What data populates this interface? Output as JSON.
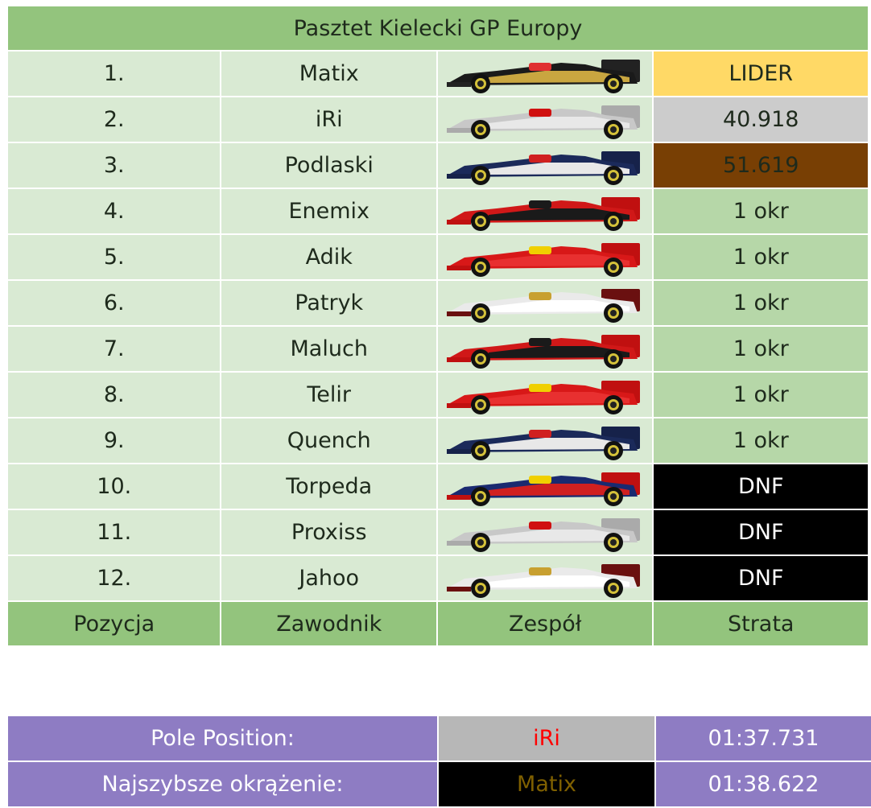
{
  "title": "Pasztet Kielecki GP Europy",
  "rows": [
    {
      "pos": "1.",
      "driver": "Matix",
      "car": "car-black-gold-icon",
      "gap": "LIDER",
      "gap_color": "#ffd966"
    },
    {
      "pos": "2.",
      "driver": "iRi",
      "car": "car-silver-red-icon",
      "gap": "40.918",
      "gap_color": "#cccccc"
    },
    {
      "pos": "3.",
      "driver": "Podlaski",
      "car": "car-navy-white-icon",
      "gap": "51.619",
      "gap_color": "#783f04"
    },
    {
      "pos": "4.",
      "driver": "Enemix",
      "car": "car-red-black-icon",
      "gap": "1 okr",
      "gap_color": "#b6d7a8"
    },
    {
      "pos": "5.",
      "driver": "Adik",
      "car": "car-red-icon",
      "gap": "1 okr",
      "gap_color": "#b6d7a8"
    },
    {
      "pos": "6.",
      "driver": "Patryk",
      "car": "car-white-maroon-icon",
      "gap": "1 okr",
      "gap_color": "#b6d7a8"
    },
    {
      "pos": "7.",
      "driver": "Maluch",
      "car": "car-red-black-icon",
      "gap": "1 okr",
      "gap_color": "#b6d7a8"
    },
    {
      "pos": "8.",
      "driver": "Telir",
      "car": "car-red-icon",
      "gap": "1 okr",
      "gap_color": "#b6d7a8"
    },
    {
      "pos": "9.",
      "driver": "Quench",
      "car": "car-navy-white-icon",
      "gap": "1 okr",
      "gap_color": "#b6d7a8"
    },
    {
      "pos": "10.",
      "driver": "Torpeda",
      "car": "car-navy-red-yellow-icon",
      "gap": "DNF",
      "gap_color": "#000000"
    },
    {
      "pos": "11.",
      "driver": "Proxiss",
      "car": "car-silver-red-icon",
      "gap": "DNF",
      "gap_color": "#000000"
    },
    {
      "pos": "12.",
      "driver": "Jahoo",
      "car": "car-white-maroon-icon",
      "gap": "DNF",
      "gap_color": "#000000"
    }
  ],
  "headers": {
    "position": "Pozycja",
    "driver": "Zawodnik",
    "team": "Zespół",
    "gap": "Strata"
  },
  "awards": {
    "pole": {
      "label": "Pole Position:",
      "driver": "iRi",
      "time": "01:37.731"
    },
    "fastest_lap": {
      "label": "Najszybsze okrążenie:",
      "driver": "Matix",
      "time": "01:38.622"
    }
  },
  "colors": {
    "header_green": "#93c47d",
    "row_green": "#d9ead3",
    "gap_green": "#b6d7a8",
    "award_purple": "#8e7cc3"
  }
}
